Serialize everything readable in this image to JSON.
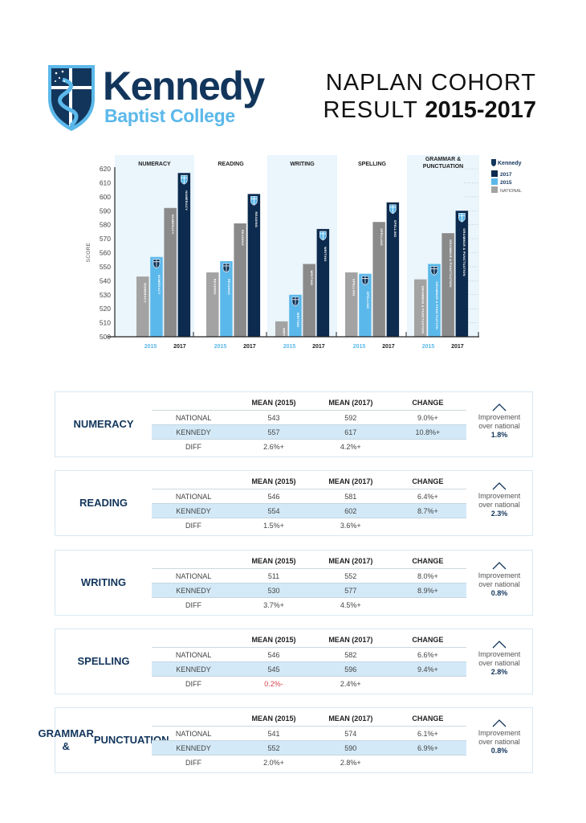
{
  "header": {
    "logo_name": "Kennedy",
    "logo_subtitle": "Baptist College",
    "title_line1": "NAPLAN COHORT",
    "title_line2_prefix": "RESULT ",
    "title_line2_years": "2015-2017"
  },
  "colors": {
    "navy": "#0d2b4e",
    "light_blue": "#5bb8ea",
    "national_2015": "#a3a3a3",
    "national_2017": "#8a8a8a",
    "panel_bg": "#eaf5fc",
    "negative": "#d9414f"
  },
  "chart_data": {
    "type": "bar",
    "ylabel": "SCORE",
    "ylim": [
      500,
      620
    ],
    "yticks": [
      "500",
      "510",
      "520",
      "530",
      "540",
      "550",
      "560",
      "570",
      "580",
      "590",
      "600",
      "610",
      "620"
    ],
    "categories": [
      "NUMERACY",
      "READING",
      "WRITING",
      "SPELLING",
      "GRAMMAR & PUNCTUATION"
    ],
    "category_lines": [
      [
        "NUMERACY"
      ],
      [
        "READING"
      ],
      [
        "WRITING"
      ],
      [
        "SPELLING"
      ],
      [
        "GRAMMAR &",
        "PUNCTUATION"
      ]
    ],
    "bar_labels": [
      "NUMERACY",
      "READING",
      "WRITING",
      "SPELLING",
      "GRAMMAR & PUNCTUATION"
    ],
    "x_group_labels": [
      "2015",
      "2017"
    ],
    "series": [
      {
        "name": "NATIONAL 2015",
        "color": "#a3a3a3",
        "values": [
          543,
          546,
          511,
          546,
          541
        ]
      },
      {
        "name": "KENNEDY 2015",
        "color": "#5bb8ea",
        "values": [
          557,
          554,
          530,
          545,
          552
        ]
      },
      {
        "name": "NATIONAL 2017",
        "color": "#8a8a8a",
        "values": [
          592,
          581,
          552,
          582,
          574
        ]
      },
      {
        "name": "KENNEDY 2017",
        "color": "#0d2b4e",
        "values": [
          617,
          602,
          577,
          596,
          590
        ]
      }
    ],
    "legend": {
      "logo_text": "Kennedy",
      "entries": [
        {
          "label": "2017",
          "color": "#0d2b4e"
        },
        {
          "label": "2015",
          "color": "#5bb8ea"
        },
        {
          "label": "NATIONAL",
          "color": "#a3a3a3"
        }
      ],
      "position": "top-right"
    },
    "grid": false
  },
  "tables": {
    "columns": [
      "MEAN (2015)",
      "MEAN (2017)",
      "CHANGE"
    ],
    "improvement_label_line1": "Improvement",
    "improvement_label_line2": "over national",
    "subjects": [
      {
        "name_lines": [
          "NUMERACY"
        ],
        "rows": [
          {
            "label": "NATIONAL",
            "mean2015": "543",
            "mean2017": "592",
            "change": "9.0%+"
          },
          {
            "label": "KENNEDY",
            "mean2015": "557",
            "mean2017": "617",
            "change": "10.8%+"
          },
          {
            "label": "DIFF",
            "mean2015": "2.6%+",
            "mean2017": "4.2%+",
            "change": ""
          }
        ],
        "improvement": "1.8%"
      },
      {
        "name_lines": [
          "READING"
        ],
        "rows": [
          {
            "label": "NATIONAL",
            "mean2015": "546",
            "mean2017": "581",
            "change": "6.4%+"
          },
          {
            "label": "KENNEDY",
            "mean2015": "554",
            "mean2017": "602",
            "change": "8.7%+"
          },
          {
            "label": "DIFF",
            "mean2015": "1.5%+",
            "mean2017": "3.6%+",
            "change": ""
          }
        ],
        "improvement": "2.3%"
      },
      {
        "name_lines": [
          "WRITING"
        ],
        "rows": [
          {
            "label": "NATIONAL",
            "mean2015": "511",
            "mean2017": "552",
            "change": "8.0%+"
          },
          {
            "label": "KENNEDY",
            "mean2015": "530",
            "mean2017": "577",
            "change": "8.9%+"
          },
          {
            "label": "DIFF",
            "mean2015": "3.7%+",
            "mean2017": "4.5%+",
            "change": ""
          }
        ],
        "improvement": "0.8%"
      },
      {
        "name_lines": [
          "SPELLING"
        ],
        "rows": [
          {
            "label": "NATIONAL",
            "mean2015": "546",
            "mean2017": "582",
            "change": "6.6%+"
          },
          {
            "label": "KENNEDY",
            "mean2015": "545",
            "mean2017": "596",
            "change": "9.4%+"
          },
          {
            "label": "DIFF",
            "mean2015": "0.2%-",
            "mean2017": "2.4%+",
            "change": "",
            "negative2015": true
          }
        ],
        "improvement": "2.8%"
      },
      {
        "name_lines": [
          "GRAMMAR &",
          "PUNCTUATION"
        ],
        "rows": [
          {
            "label": "NATIONAL",
            "mean2015": "541",
            "mean2017": "574",
            "change": "6.1%+"
          },
          {
            "label": "KENNEDY",
            "mean2015": "552",
            "mean2017": "590",
            "change": "6.9%+"
          },
          {
            "label": "DIFF",
            "mean2015": "2.0%+",
            "mean2017": "2.8%+",
            "change": ""
          }
        ],
        "improvement": "0.8%"
      }
    ]
  }
}
